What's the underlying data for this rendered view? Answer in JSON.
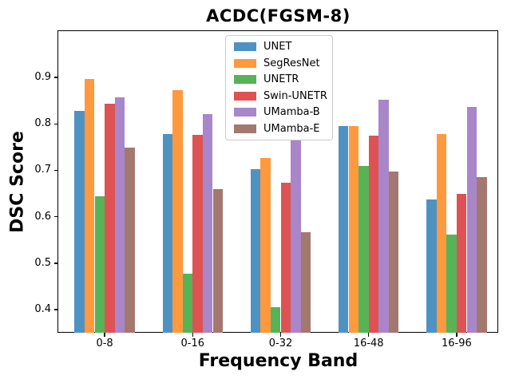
{
  "chart_data": {
    "type": "bar",
    "title": "ACDC(FGSM-8)",
    "xlabel": "Frequency Band",
    "ylabel": "DSC Score",
    "categories": [
      "0-8",
      "0-16",
      "0-32",
      "16-48",
      "16-96"
    ],
    "series": [
      {
        "name": "UNET",
        "color": "#4E92C3",
        "values": [
          0.828,
          0.778,
          0.702,
          0.796,
          0.638
        ]
      },
      {
        "name": "SegResNet",
        "color": "#FF993E",
        "values": [
          0.896,
          0.872,
          0.726,
          0.796,
          0.778
        ]
      },
      {
        "name": "UNETR",
        "color": "#56B356",
        "values": [
          0.644,
          0.477,
          0.405,
          0.709,
          0.561
        ]
      },
      {
        "name": "Swin-UNETR",
        "color": "#DE5253",
        "values": [
          0.844,
          0.777,
          0.673,
          0.775,
          0.65
        ]
      },
      {
        "name": "UMamba-B",
        "color": "#A985CA",
        "values": [
          0.858,
          0.822,
          0.764,
          0.852,
          0.836
        ]
      },
      {
        "name": "UMamba-E",
        "color": "#A3786F",
        "values": [
          0.749,
          0.659,
          0.567,
          0.698,
          0.686
        ]
      }
    ],
    "ylim": [
      0.35,
      1.0
    ],
    "yticks": [
      0.4,
      0.5,
      0.6,
      0.7,
      0.8,
      0.9
    ],
    "grid": false,
    "legend_position": "upper center",
    "frame_color": "#000000",
    "background_color": "#ffffff",
    "legend_border_color": "#cccccc"
  }
}
